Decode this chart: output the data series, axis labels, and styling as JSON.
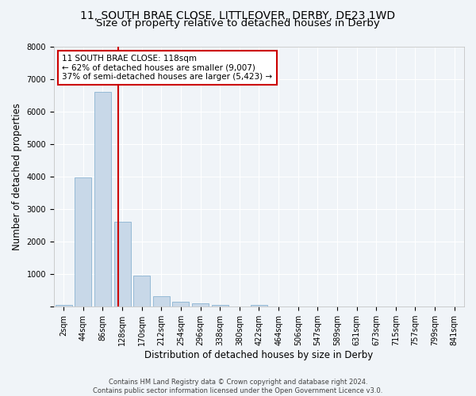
{
  "title_line1": "11, SOUTH BRAE CLOSE, LITTLEOVER, DERBY, DE23 1WD",
  "title_line2": "Size of property relative to detached houses in Derby",
  "xlabel": "Distribution of detached houses by size in Derby",
  "ylabel": "Number of detached properties",
  "footer": "Contains HM Land Registry data © Crown copyright and database right 2024.\nContains public sector information licensed under the Open Government Licence v3.0.",
  "bar_labels": [
    "2sqm",
    "44sqm",
    "86sqm",
    "128sqm",
    "170sqm",
    "212sqm",
    "254sqm",
    "296sqm",
    "338sqm",
    "380sqm",
    "422sqm",
    "464sqm",
    "506sqm",
    "547sqm",
    "589sqm",
    "631sqm",
    "673sqm",
    "715sqm",
    "757sqm",
    "799sqm",
    "841sqm"
  ],
  "bar_values": [
    60,
    3980,
    6620,
    2620,
    950,
    325,
    140,
    110,
    65,
    0,
    65,
    0,
    0,
    0,
    0,
    0,
    0,
    0,
    0,
    0,
    0
  ],
  "bar_color": "#c8d8e8",
  "bar_edge_color": "#7aaacc",
  "bar_edge_width": 0.5,
  "vline_x": 2.78,
  "vline_color": "#cc0000",
  "annotation_text": "11 SOUTH BRAE CLOSE: 118sqm\n← 62% of detached houses are smaller (9,007)\n37% of semi-detached houses are larger (5,423) →",
  "annotation_box_color": "white",
  "annotation_box_edgecolor": "#cc0000",
  "ylim": [
    0,
    8000
  ],
  "yticks": [
    0,
    1000,
    2000,
    3000,
    4000,
    5000,
    6000,
    7000,
    8000
  ],
  "bg_color": "#f0f4f8",
  "plot_bg_color": "#f0f4f8",
  "grid_color": "white",
  "title_fontsize": 10,
  "subtitle_fontsize": 9.5,
  "axis_label_fontsize": 8.5,
  "tick_fontsize": 7,
  "annotation_fontsize": 7.5,
  "footer_fontsize": 6
}
